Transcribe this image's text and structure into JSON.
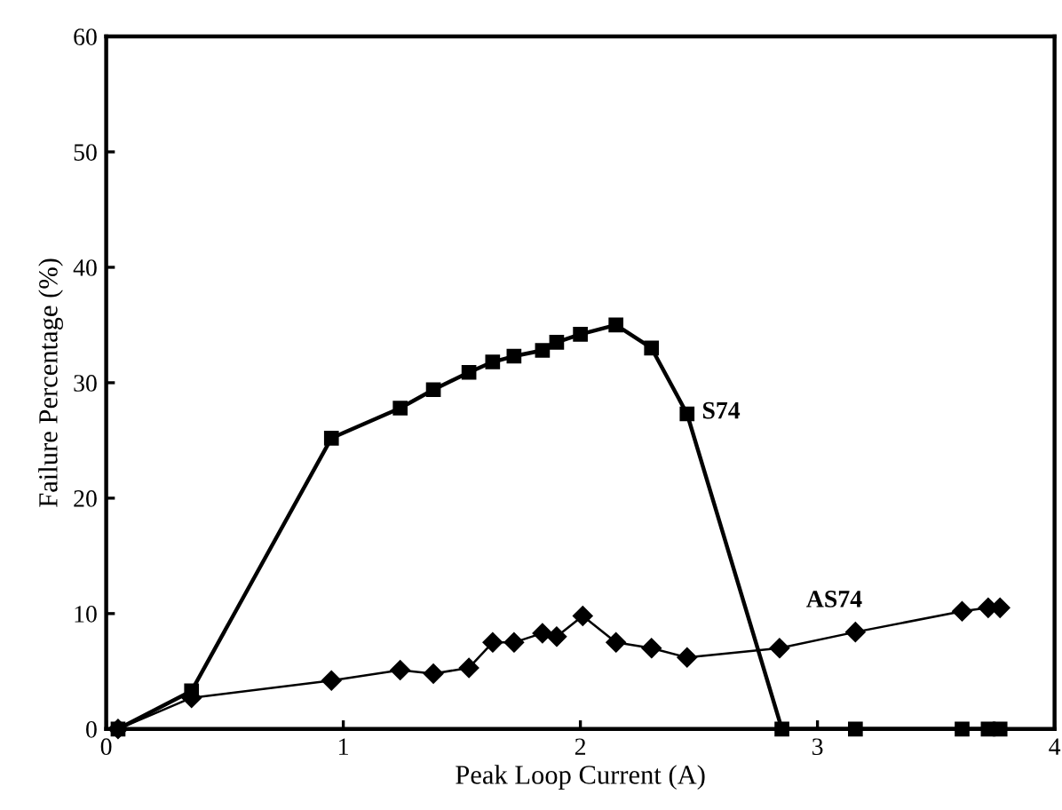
{
  "chart_data": {
    "type": "line",
    "xlabel": "Peak Loop Current (A)",
    "ylabel": "Failure Percentage (%)",
    "xlim": [
      0,
      4
    ],
    "xticks": [
      0,
      1,
      2,
      3,
      4
    ],
    "ylim": [
      0,
      60
    ],
    "yticks": [
      0,
      10,
      20,
      30,
      40,
      50,
      60
    ],
    "grid": false,
    "legend": false,
    "series": [
      {
        "color": "#000000",
        "marker": "square",
        "x": [
          0.05,
          0.36,
          0.95,
          1.24,
          1.38,
          1.53,
          1.63,
          1.72,
          1.84,
          1.9,
          2.0,
          2.15,
          2.3,
          2.45,
          2.85,
          3.16,
          3.61,
          3.72,
          3.77
        ],
        "values": [
          0,
          3.3,
          25.2,
          27.8,
          29.4,
          30.9,
          31.8,
          32.3,
          32.8,
          33.5,
          34.2,
          35.0,
          33.0,
          27.3,
          0,
          0,
          0,
          0,
          0
        ]
      },
      {
        "color": "#000000",
        "marker": "diamond",
        "x": [
          0.05,
          0.36,
          0.95,
          1.24,
          1.38,
          1.53,
          1.63,
          1.72,
          1.84,
          1.9,
          2.01,
          2.15,
          2.3,
          2.45,
          2.84,
          3.16,
          3.61,
          3.72,
          3.77
        ],
        "values": [
          0,
          2.7,
          4.2,
          5.1,
          4.8,
          5.3,
          7.5,
          7.5,
          8.3,
          8.0,
          9.8,
          7.5,
          7.0,
          6.2,
          7.0,
          8.4,
          10.2,
          10.5,
          10.5
        ]
      }
    ],
    "annotations": [
      {
        "text": "S74",
        "x": 2.45,
        "y": 27.3
      },
      {
        "text": "AS74",
        "x": 3.16,
        "y": 8.4
      }
    ]
  }
}
